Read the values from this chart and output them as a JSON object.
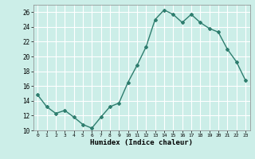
{
  "x": [
    0,
    1,
    2,
    3,
    4,
    5,
    6,
    7,
    8,
    9,
    10,
    11,
    12,
    13,
    14,
    15,
    16,
    17,
    18,
    19,
    20,
    21,
    22,
    23
  ],
  "y": [
    14.8,
    13.2,
    12.3,
    12.7,
    11.8,
    10.8,
    10.3,
    11.8,
    13.2,
    13.7,
    16.5,
    18.8,
    21.3,
    25.0,
    26.3,
    25.7,
    24.6,
    25.7,
    24.6,
    23.8,
    23.3,
    21.0,
    19.3,
    16.8
  ],
  "xlabel": "Humidex (Indice chaleur)",
  "ylim": [
    10,
    27
  ],
  "xlim": [
    -0.5,
    23.5
  ],
  "yticks": [
    10,
    12,
    14,
    16,
    18,
    20,
    22,
    24,
    26
  ],
  "xticks": [
    0,
    1,
    2,
    3,
    4,
    5,
    6,
    7,
    8,
    9,
    10,
    11,
    12,
    13,
    14,
    15,
    16,
    17,
    18,
    19,
    20,
    21,
    22,
    23
  ],
  "line_color": "#2e7d6e",
  "marker": "D",
  "marker_size": 2.0,
  "bg_color": "#cceee8",
  "grid_color": "#ffffff",
  "line_width": 1.0
}
